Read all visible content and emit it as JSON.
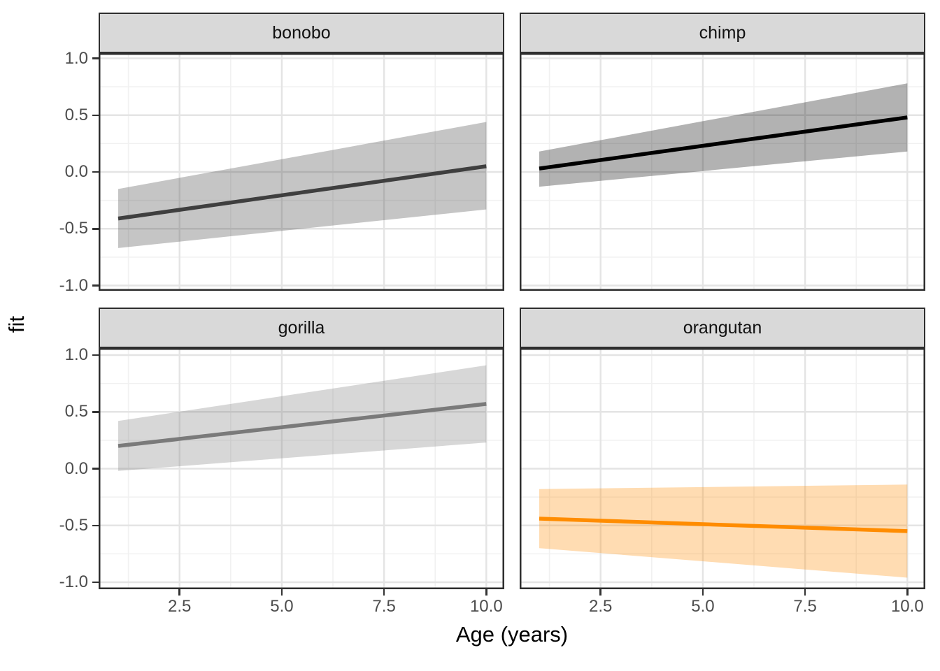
{
  "chart_data": {
    "type": "line",
    "description": "Faceted linear-fit plot with confidence ribbons, one panel per species",
    "xlabel": "Age (years)",
    "ylabel": "fit",
    "x_ticks": {
      "values": [
        2.5,
        5.0,
        7.5,
        10.0
      ],
      "labels": [
        "2.5",
        "5.0",
        "7.5",
        "10.0"
      ]
    },
    "y_ticks": {
      "values": [
        1.0,
        0.5,
        0.0,
        -0.5,
        -1.0
      ],
      "labels": [
        "1.0",
        "0.5",
        "0.0",
        "-0.5",
        "-1.0"
      ]
    },
    "x_minor_ticks": [
      1.25,
      3.75,
      6.25,
      8.75
    ],
    "y_minor_ticks": [
      0.75,
      0.25,
      -0.25,
      -0.75
    ],
    "xlim_data": [
      1,
      10
    ],
    "xlim_display": [
      0.55,
      10.45
    ],
    "ylim_display": [
      -1.046,
      1.046
    ],
    "grid": true,
    "legend": "none",
    "facets": [
      {
        "label": "bonobo",
        "line_color": "#3F3F3F",
        "ribbon_color": "rgba(63,63,63,0.30)",
        "x": [
          1,
          10
        ],
        "fit": [
          -0.41,
          0.05
        ],
        "ci_upper": [
          -0.15,
          0.44
        ],
        "ci_lower": [
          -0.67,
          -0.33
        ]
      },
      {
        "label": "chimp",
        "line_color": "#000000",
        "ribbon_color": "rgba(0,0,0,0.30)",
        "x": [
          1,
          10
        ],
        "fit": [
          0.03,
          0.48
        ],
        "ci_upper": [
          0.18,
          0.78
        ],
        "ci_lower": [
          -0.13,
          0.18
        ]
      },
      {
        "label": "gorilla",
        "line_color": "#7A7A7A",
        "ribbon_color": "rgba(122,122,122,0.30)",
        "x": [
          1,
          10
        ],
        "fit": [
          0.2,
          0.57
        ],
        "ci_upper": [
          0.42,
          0.91
        ],
        "ci_lower": [
          -0.02,
          0.23
        ]
      },
      {
        "label": "orangutan",
        "line_color": "#FF8C00",
        "ribbon_color": "rgba(255,140,0,0.30)",
        "x": [
          1,
          10
        ],
        "fit": [
          -0.44,
          -0.55
        ],
        "ci_upper": [
          -0.18,
          -0.14
        ],
        "ci_lower": [
          -0.7,
          -0.96
        ]
      }
    ]
  },
  "style": {
    "panel_background": "#FFFFFF",
    "panel_border": "#2E2E2E",
    "strip_background": "#D9D9D9",
    "grid_major": "#E4E4E4",
    "grid_minor": "#F1F1F1",
    "tick_mark": "#333333",
    "tick_label_color": "#4D4D4D",
    "title_color": "#000000"
  }
}
